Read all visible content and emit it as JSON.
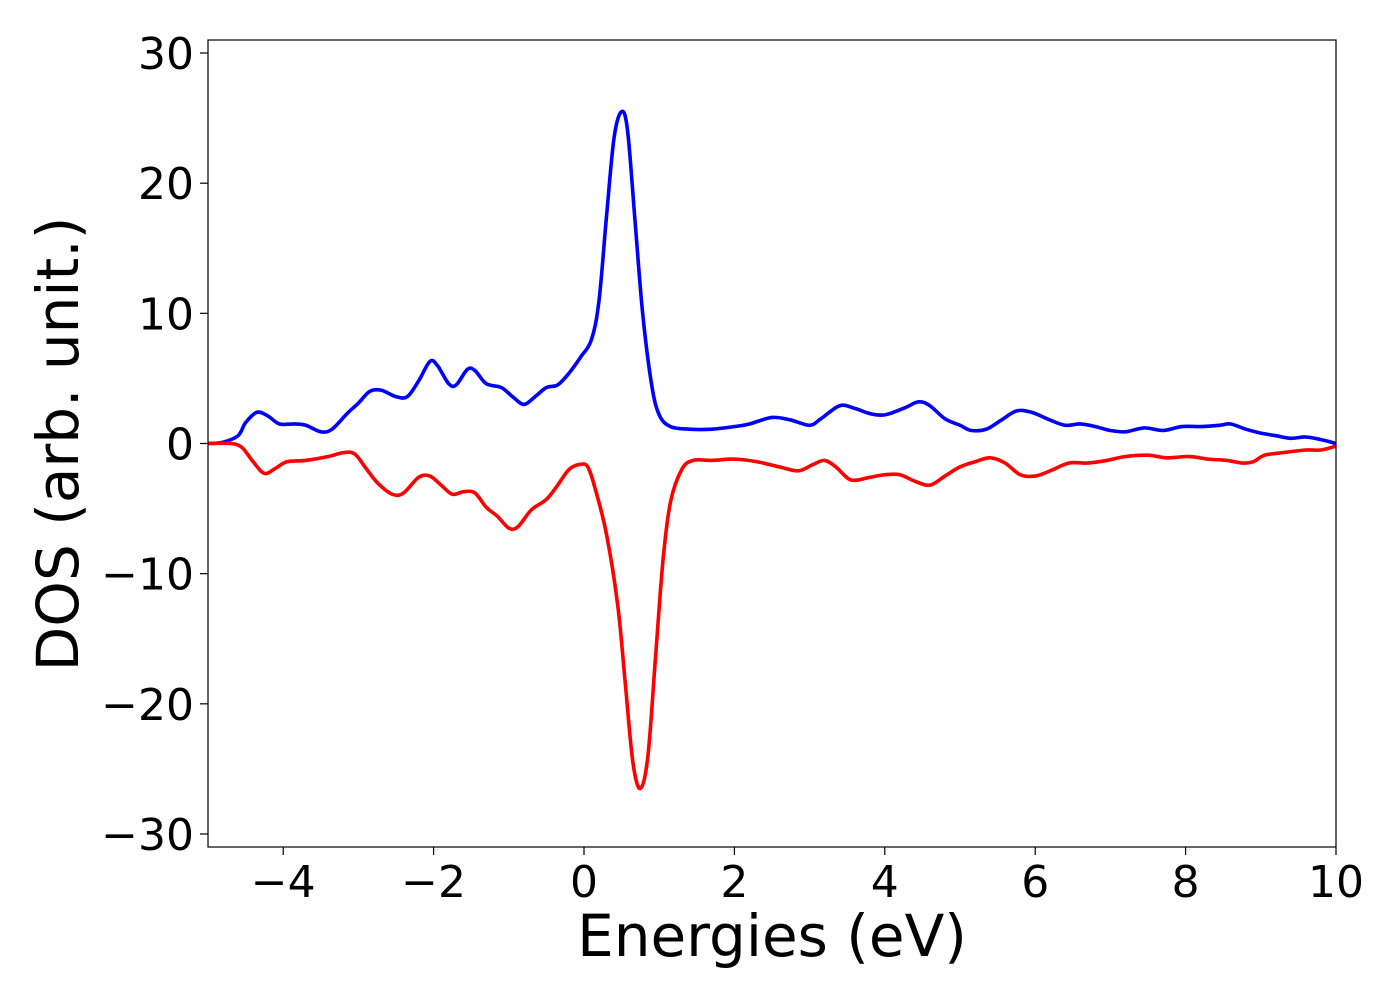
{
  "chart_data": {
    "type": "line",
    "xlabel": "Energies (eV)",
    "ylabel": "DOS (arb. unit.)",
    "xlim": [
      -5,
      10
    ],
    "ylim": [
      -31,
      31
    ],
    "grid": false,
    "x_ticks": [
      {
        "value": -4,
        "label": "−4"
      },
      {
        "value": -2,
        "label": "−2"
      },
      {
        "value": 0,
        "label": "0"
      },
      {
        "value": 2,
        "label": "2"
      },
      {
        "value": 4,
        "label": "4"
      },
      {
        "value": 6,
        "label": "6"
      },
      {
        "value": 8,
        "label": "8"
      },
      {
        "value": 10,
        "label": "10"
      }
    ],
    "y_ticks": [
      {
        "value": 30,
        "label": "30"
      },
      {
        "value": 20,
        "label": "20"
      },
      {
        "value": 10,
        "label": "10"
      },
      {
        "value": 0,
        "label": "0"
      },
      {
        "value": -10,
        "label": "−10"
      },
      {
        "value": -20,
        "label": "−20"
      },
      {
        "value": -30,
        "label": "−30"
      }
    ],
    "series": [
      {
        "color": "#0000ff",
        "points": [
          [
            -5.0,
            0.0
          ],
          [
            -4.8,
            0.1
          ],
          [
            -4.6,
            0.6
          ],
          [
            -4.5,
            1.6
          ],
          [
            -4.35,
            2.4
          ],
          [
            -4.2,
            2.1
          ],
          [
            -4.05,
            1.5
          ],
          [
            -3.85,
            1.5
          ],
          [
            -3.7,
            1.4
          ],
          [
            -3.5,
            0.9
          ],
          [
            -3.35,
            1.1
          ],
          [
            -3.15,
            2.3
          ],
          [
            -3.0,
            3.1
          ],
          [
            -2.85,
            4.0
          ],
          [
            -2.7,
            4.1
          ],
          [
            -2.5,
            3.6
          ],
          [
            -2.35,
            3.6
          ],
          [
            -2.2,
            4.8
          ],
          [
            -2.05,
            6.3
          ],
          [
            -1.95,
            6.0
          ],
          [
            -1.8,
            4.6
          ],
          [
            -1.7,
            4.5
          ],
          [
            -1.55,
            5.7
          ],
          [
            -1.45,
            5.6
          ],
          [
            -1.3,
            4.6
          ],
          [
            -1.1,
            4.3
          ],
          [
            -0.95,
            3.6
          ],
          [
            -0.8,
            3.0
          ],
          [
            -0.65,
            3.6
          ],
          [
            -0.5,
            4.3
          ],
          [
            -0.35,
            4.5
          ],
          [
            -0.2,
            5.4
          ],
          [
            -0.05,
            6.6
          ],
          [
            0.1,
            8.0
          ],
          [
            0.2,
            11.0
          ],
          [
            0.3,
            17.5
          ],
          [
            0.4,
            23.5
          ],
          [
            0.5,
            25.5
          ],
          [
            0.58,
            24.0
          ],
          [
            0.68,
            17.0
          ],
          [
            0.78,
            10.0
          ],
          [
            0.9,
            4.5
          ],
          [
            1.0,
            2.2
          ],
          [
            1.15,
            1.3
          ],
          [
            1.4,
            1.1
          ],
          [
            1.7,
            1.1
          ],
          [
            2.0,
            1.3
          ],
          [
            2.2,
            1.5
          ],
          [
            2.5,
            2.0
          ],
          [
            2.75,
            1.8
          ],
          [
            3.0,
            1.4
          ],
          [
            3.15,
            1.9
          ],
          [
            3.4,
            2.9
          ],
          [
            3.6,
            2.7
          ],
          [
            3.8,
            2.3
          ],
          [
            4.0,
            2.2
          ],
          [
            4.25,
            2.7
          ],
          [
            4.45,
            3.2
          ],
          [
            4.6,
            2.9
          ],
          [
            4.8,
            1.9
          ],
          [
            5.0,
            1.4
          ],
          [
            5.15,
            1.0
          ],
          [
            5.35,
            1.1
          ],
          [
            5.55,
            1.8
          ],
          [
            5.75,
            2.5
          ],
          [
            5.95,
            2.4
          ],
          [
            6.2,
            1.8
          ],
          [
            6.4,
            1.4
          ],
          [
            6.6,
            1.5
          ],
          [
            6.8,
            1.3
          ],
          [
            7.0,
            1.0
          ],
          [
            7.2,
            0.9
          ],
          [
            7.45,
            1.2
          ],
          [
            7.7,
            1.0
          ],
          [
            7.95,
            1.3
          ],
          [
            8.2,
            1.3
          ],
          [
            8.45,
            1.4
          ],
          [
            8.6,
            1.5
          ],
          [
            8.8,
            1.1
          ],
          [
            9.0,
            0.8
          ],
          [
            9.2,
            0.6
          ],
          [
            9.4,
            0.4
          ],
          [
            9.6,
            0.5
          ],
          [
            9.8,
            0.3
          ],
          [
            10.0,
            0.0
          ]
        ]
      },
      {
        "color": "#ff0000",
        "points": [
          [
            -5.0,
            0.0
          ],
          [
            -4.7,
            0.0
          ],
          [
            -4.55,
            -0.3
          ],
          [
            -4.4,
            -1.4
          ],
          [
            -4.25,
            -2.3
          ],
          [
            -4.1,
            -1.9
          ],
          [
            -3.95,
            -1.4
          ],
          [
            -3.7,
            -1.3
          ],
          [
            -3.4,
            -1.0
          ],
          [
            -3.2,
            -0.7
          ],
          [
            -3.05,
            -0.8
          ],
          [
            -2.9,
            -1.9
          ],
          [
            -2.75,
            -3.0
          ],
          [
            -2.55,
            -3.9
          ],
          [
            -2.4,
            -3.8
          ],
          [
            -2.2,
            -2.6
          ],
          [
            -2.05,
            -2.5
          ],
          [
            -1.9,
            -3.2
          ],
          [
            -1.75,
            -3.9
          ],
          [
            -1.6,
            -3.7
          ],
          [
            -1.45,
            -3.8
          ],
          [
            -1.3,
            -4.9
          ],
          [
            -1.15,
            -5.6
          ],
          [
            -1.0,
            -6.5
          ],
          [
            -0.88,
            -6.4
          ],
          [
            -0.7,
            -5.1
          ],
          [
            -0.5,
            -4.3
          ],
          [
            -0.35,
            -3.2
          ],
          [
            -0.2,
            -2.0
          ],
          [
            -0.05,
            -1.6
          ],
          [
            0.05,
            -1.8
          ],
          [
            0.15,
            -3.5
          ],
          [
            0.3,
            -7.0
          ],
          [
            0.45,
            -12.5
          ],
          [
            0.55,
            -18.5
          ],
          [
            0.65,
            -24.5
          ],
          [
            0.75,
            -26.5
          ],
          [
            0.85,
            -24.0
          ],
          [
            0.95,
            -16.5
          ],
          [
            1.05,
            -9.0
          ],
          [
            1.15,
            -4.5
          ],
          [
            1.3,
            -2.0
          ],
          [
            1.45,
            -1.3
          ],
          [
            1.7,
            -1.3
          ],
          [
            2.0,
            -1.2
          ],
          [
            2.3,
            -1.4
          ],
          [
            2.6,
            -1.8
          ],
          [
            2.85,
            -2.1
          ],
          [
            3.05,
            -1.6
          ],
          [
            3.2,
            -1.3
          ],
          [
            3.35,
            -1.8
          ],
          [
            3.55,
            -2.8
          ],
          [
            3.8,
            -2.6
          ],
          [
            4.0,
            -2.4
          ],
          [
            4.2,
            -2.4
          ],
          [
            4.4,
            -2.9
          ],
          [
            4.6,
            -3.2
          ],
          [
            4.8,
            -2.5
          ],
          [
            5.0,
            -1.8
          ],
          [
            5.2,
            -1.4
          ],
          [
            5.4,
            -1.1
          ],
          [
            5.6,
            -1.5
          ],
          [
            5.8,
            -2.4
          ],
          [
            6.0,
            -2.5
          ],
          [
            6.2,
            -2.1
          ],
          [
            6.45,
            -1.5
          ],
          [
            6.7,
            -1.5
          ],
          [
            6.95,
            -1.3
          ],
          [
            7.2,
            -1.0
          ],
          [
            7.5,
            -0.9
          ],
          [
            7.75,
            -1.1
          ],
          [
            8.05,
            -1.0
          ],
          [
            8.3,
            -1.2
          ],
          [
            8.55,
            -1.3
          ],
          [
            8.75,
            -1.5
          ],
          [
            8.9,
            -1.4
          ],
          [
            9.05,
            -0.9
          ],
          [
            9.3,
            -0.7
          ],
          [
            9.6,
            -0.5
          ],
          [
            9.8,
            -0.5
          ],
          [
            10.0,
            -0.2
          ]
        ]
      }
    ]
  }
}
